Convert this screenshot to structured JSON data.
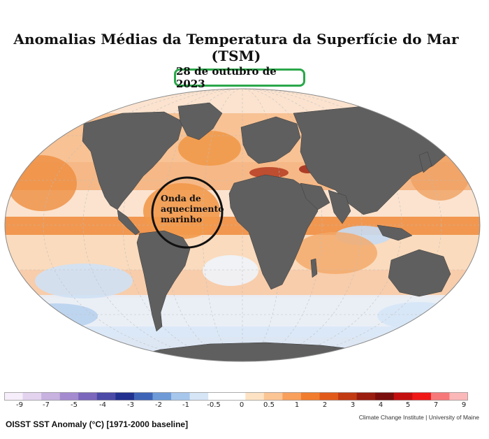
{
  "title": "Anomalias Médias da Temperatura da Superfície do Mar (TSM)",
  "date_label": "28 de outubro de 2023",
  "annotation": {
    "lines": [
      "Onda de",
      "aquecimento",
      "marinho"
    ]
  },
  "colorbar": {
    "tick_labels": [
      "-9",
      "-7",
      "-5",
      "-4",
      "-3",
      "-2",
      "-1",
      "-0.5",
      "0",
      "0.5",
      "1",
      "2",
      "3",
      "4",
      "5",
      "7",
      "9"
    ],
    "colors": [
      "#f6eefa",
      "#e3d3ef",
      "#c7b2e0",
      "#a48bcf",
      "#7b67bb",
      "#4b4aa6",
      "#22318f",
      "#3e64b7",
      "#6e9bd8",
      "#a7c6ec",
      "#d6e6f6",
      "#ffffff",
      "#ffffff",
      "#fde3c4",
      "#fcc594",
      "#f9a05c",
      "#f17c2d",
      "#e25a19",
      "#c23a12",
      "#9a1d0f",
      "#7a0e0c",
      "#c40f0f",
      "#f01717",
      "#f77878",
      "#fbb8b8"
    ]
  },
  "caption": "OISST SST Anomaly (°C) [1971-2000 baseline]",
  "credit": "Climate Change Institute | University of Maine",
  "colors": {
    "land": "#5f5f5f",
    "warm": "#f39a52",
    "cool": "#c8dcf2",
    "frame_green": "#2aa84a"
  }
}
